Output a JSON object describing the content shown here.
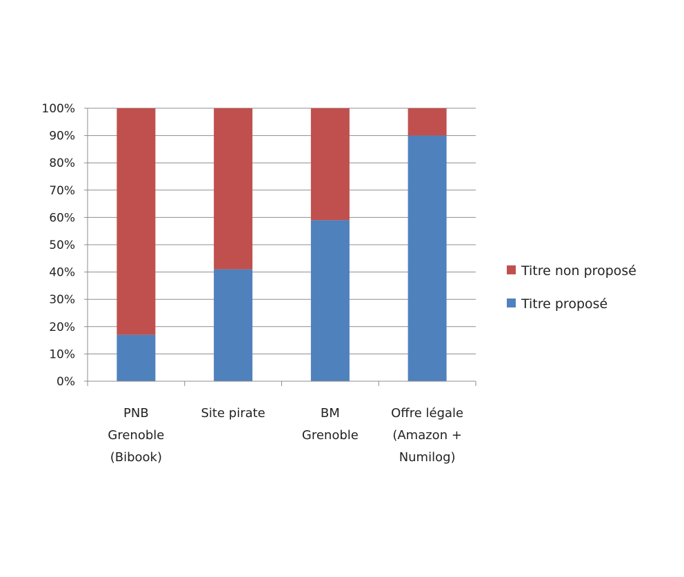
{
  "chart_data": {
    "type": "bar",
    "stacked": true,
    "orientation": "vertical",
    "percent_stacked": true,
    "title": "",
    "xlabel": "",
    "ylabel": "",
    "ylim": [
      0,
      100
    ],
    "yticks": [
      "0%",
      "10%",
      "20%",
      "30%",
      "40%",
      "50%",
      "60%",
      "70%",
      "80%",
      "90%",
      "100%"
    ],
    "categories": [
      [
        "PNB",
        "Grenoble",
        "(Bibook)"
      ],
      [
        "Site pirate"
      ],
      [
        "BM",
        "Grenoble"
      ],
      [
        "Offre légale",
        "(Amazon +",
        "Numilog)"
      ]
    ],
    "series": [
      {
        "name": "Titre proposé",
        "color": "#4f81bd",
        "values": [
          17,
          41,
          59,
          90
        ]
      },
      {
        "name": "Titre non proposé",
        "color": "#c0504d",
        "values": [
          83,
          59,
          41,
          10
        ]
      }
    ],
    "legend": {
      "position": "right",
      "entries": [
        {
          "label": "Titre non proposé",
          "color": "#c0504d"
        },
        {
          "label": "Titre proposé",
          "color": "#4f81bd"
        }
      ]
    },
    "grid": true
  }
}
